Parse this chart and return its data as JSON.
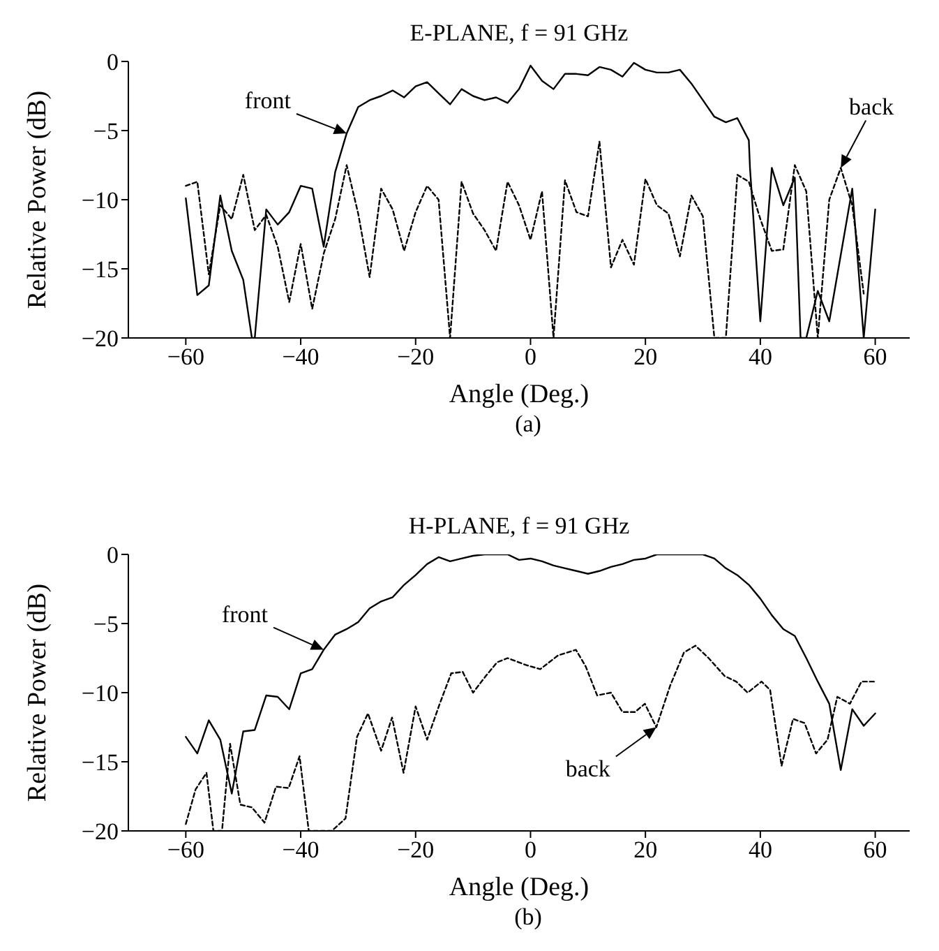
{
  "chart_data": [
    {
      "type": "line",
      "title": "E-PLANE, f = 91 GHz",
      "xlabel": "Angle (Deg.)",
      "ylabel": "Relative Power (dB)",
      "xlim": [
        -70,
        66
      ],
      "xticks": [
        -60,
        -40,
        -20,
        0,
        20,
        40,
        60
      ],
      "ylim": [
        -20,
        0
      ],
      "yticks": [
        -20,
        -15,
        -10,
        -5,
        0
      ],
      "grid": false,
      "legend": false,
      "series": [
        {
          "name": null,
          "color": "#000000",
          "line_style": "solid",
          "x": [
            -60,
            -58,
            -56,
            -54,
            -52,
            -50,
            -48.5,
            -48,
            -46,
            -44,
            -42,
            -40,
            -38,
            -36,
            -34,
            -32,
            -30,
            -28,
            -26,
            -24,
            -22,
            -20,
            -18,
            -16,
            -14,
            -12,
            -10,
            -8,
            -6,
            -4,
            -2,
            0,
            2,
            4,
            6,
            8,
            10,
            12,
            14,
            16,
            18,
            20,
            22,
            24,
            26,
            28,
            30,
            32,
            34,
            36,
            38,
            38.2,
            40,
            42,
            44,
            46,
            47,
            48,
            50,
            52,
            54,
            56,
            58,
            60
          ],
          "values": [
            -9.9,
            -16.9,
            -16.2,
            -9.7,
            -13.7,
            -15.8,
            -20,
            -20,
            -10.7,
            -11.8,
            -10.9,
            -9.0,
            -9.2,
            -13.4,
            -8.0,
            -5.2,
            -3.3,
            -2.8,
            -2.5,
            -2.1,
            -2.6,
            -1.8,
            -1.5,
            -2.3,
            -3.1,
            -2.0,
            -2.5,
            -2.8,
            -2.6,
            -3.0,
            -2.0,
            -0.3,
            -1.4,
            -2.0,
            -0.9,
            -0.9,
            -1.0,
            -0.4,
            -0.6,
            -1.1,
            -0.1,
            -0.6,
            -0.8,
            -0.8,
            -0.6,
            -1.6,
            -2.8,
            -4.0,
            -4.4,
            -4.1,
            -5.7,
            -7.7,
            -18.8,
            -7.7,
            -10.4,
            -8.4,
            -20,
            -20,
            -16.6,
            -18.8,
            -14,
            -9.2,
            -20,
            -10.7
          ]
        },
        {
          "name": null,
          "color": "#000000",
          "line_style": "dashed",
          "x": [
            -60,
            -58,
            -56,
            -54,
            -52,
            -50,
            -48,
            -46,
            -44,
            -42,
            -40,
            -38,
            -36,
            -34,
            -32,
            -30,
            -28,
            -26,
            -24,
            -22,
            -20,
            -18,
            -16,
            -14,
            -12,
            -10,
            -8,
            -6,
            -4,
            -2,
            0,
            2,
            4,
            6,
            8,
            10,
            12,
            14,
            16,
            18,
            20,
            22,
            24,
            26,
            28,
            30,
            32,
            34,
            36,
            38,
            40,
            42,
            44,
            46,
            48,
            50,
            52,
            54,
            56,
            58
          ],
          "values": [
            -9.0,
            -8.7,
            -15.4,
            -10.4,
            -11.4,
            -8.2,
            -12.2,
            -11.1,
            -13.4,
            -17.4,
            -13.2,
            -17.9,
            -13.9,
            -11.4,
            -7.5,
            -11.0,
            -15.6,
            -9.2,
            -10.7,
            -13.7,
            -10.9,
            -9.0,
            -10.0,
            -20,
            -8.7,
            -11.0,
            -12.2,
            -13.7,
            -8.7,
            -10.4,
            -12.9,
            -9.4,
            -20,
            -8.6,
            -10.9,
            -11.2,
            -5.8,
            -14.9,
            -12.9,
            -14.7,
            -8.5,
            -10.4,
            -11.0,
            -14.1,
            -9.7,
            -11.2,
            -20,
            -20,
            -8.2,
            -8.7,
            -11.4,
            -13.7,
            -13.6,
            -7.5,
            -9.4,
            -20,
            -10.0,
            -7.7,
            -10.4,
            -16.8
          ]
        }
      ],
      "annotations": [
        {
          "text": "front",
          "x": -32,
          "y": -5.2
        },
        {
          "text": "back",
          "x": 54,
          "y": -7.7
        },
        "(a)"
      ]
    },
    {
      "type": "line",
      "title": "H-PLANE, f = 91 GHz",
      "xlabel": "Angle (Deg.)",
      "ylabel": "Relative Power (dB)",
      "xlim": [
        -70,
        66
      ],
      "xticks": [
        -60,
        -40,
        -20,
        0,
        20,
        40,
        60
      ],
      "ylim": [
        -20,
        0
      ],
      "yticks": [
        -20,
        -15,
        -10,
        -5,
        0
      ],
      "grid": false,
      "legend": false,
      "series": [
        {
          "name": null,
          "color": "#000000",
          "line_style": "solid",
          "x": [
            -60,
            -58,
            -56,
            -54,
            -52,
            -50,
            -48,
            -46,
            -44,
            -42,
            -40,
            -38,
            -36,
            -34,
            -32,
            -30,
            -28,
            -26,
            -24,
            -22,
            -20,
            -18,
            -16,
            -14,
            -12,
            -10,
            -8,
            -6,
            -4,
            -2,
            0,
            2,
            4,
            6,
            8,
            10,
            12,
            14,
            16,
            18,
            20,
            22,
            24,
            26,
            28,
            30,
            32,
            34,
            36,
            38,
            40,
            42,
            44,
            46,
            48,
            50,
            52,
            54,
            56,
            58,
            60
          ],
          "values": [
            -13.2,
            -14.4,
            -12.0,
            -13.4,
            -17.3,
            -12.8,
            -12.7,
            -10.2,
            -10.3,
            -11.2,
            -8.6,
            -8.3,
            -6.9,
            -5.8,
            -5.4,
            -4.9,
            -3.9,
            -3.4,
            -3.1,
            -2.2,
            -1.5,
            -0.7,
            -0.2,
            -0.5,
            -0.3,
            -0.1,
            0,
            0,
            0,
            -0.4,
            -0.3,
            -0.5,
            -0.8,
            -1.0,
            -1.2,
            -1.4,
            -1.2,
            -0.9,
            -0.7,
            -0.4,
            -0.3,
            0,
            0,
            0,
            0,
            0,
            -0.3,
            -1.0,
            -1.5,
            -2.2,
            -3.2,
            -4.4,
            -5.4,
            -5.9,
            -7.5,
            -9.2,
            -10.8,
            -15.6,
            -11.2,
            -12.4,
            -11.5
          ]
        },
        {
          "name": null,
          "color": "#000000",
          "line_style": "dashed",
          "x": [
            -60,
            -58.3,
            -56.4,
            -55.2,
            -53.7,
            -52.3,
            -50.5,
            -48.5,
            -46.3,
            -44.3,
            -42.1,
            -40.2,
            -38.6,
            -34.6,
            -32.2,
            -30.2,
            -28.3,
            -26,
            -24.1,
            -22.1,
            -20,
            -18,
            -15.8,
            -13.8,
            -11.8,
            -10,
            -7.8,
            -5.8,
            -4,
            -0.8,
            1.7,
            4.8,
            7.9,
            9.6,
            11.6,
            14,
            16,
            18.2,
            19.9,
            21.9,
            24.3,
            26.7,
            28.7,
            31,
            33.8,
            35.8,
            37.8,
            40.2,
            41.7,
            43.7,
            45.7,
            47.7,
            49.7,
            51.7,
            53.4,
            55.6,
            57.6,
            59.8
          ],
          "values": [
            -19.5,
            -17.0,
            -15.8,
            -20,
            -20,
            -13.7,
            -18.1,
            -18.3,
            -19.4,
            -16.8,
            -16.9,
            -14.6,
            -20,
            -20,
            -19.1,
            -13.2,
            -11.5,
            -14.2,
            -11.8,
            -15.8,
            -11.0,
            -13.4,
            -10.8,
            -8.6,
            -8.5,
            -10.0,
            -8.8,
            -7.8,
            -7.5,
            -8.0,
            -8.3,
            -7.3,
            -6.9,
            -8.1,
            -10.2,
            -10.0,
            -11.4,
            -11.4,
            -10.8,
            -12.5,
            -9.5,
            -7.1,
            -6.6,
            -7.5,
            -8.8,
            -9.2,
            -10.0,
            -9.2,
            -9.8,
            -15.3,
            -11.9,
            -12.2,
            -14.4,
            -13.4,
            -10.3,
            -10.8,
            -9.2,
            -9.2
          ]
        }
      ],
      "annotations": [
        {
          "text": "front",
          "x": -36,
          "y": -6.9
        },
        {
          "text": "back",
          "x": 21.9,
          "y": -12.5
        },
        "(b)"
      ]
    }
  ]
}
